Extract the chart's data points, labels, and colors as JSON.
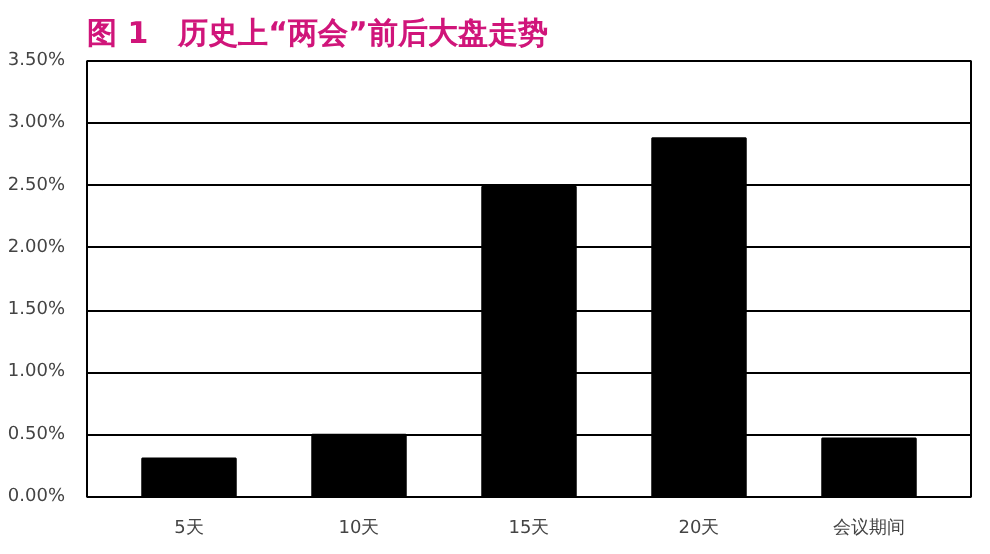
{
  "chart_data": {
    "type": "bar",
    "title": "图 1　历史上“两会”前后大盘走势",
    "categories": [
      "5天",
      "10天",
      "15天",
      "20天",
      "会议期间"
    ],
    "values": [
      0.31,
      0.5,
      2.49,
      2.88,
      0.47
    ],
    "color": "#000000",
    "ylim": [
      0,
      3.5
    ],
    "yticks": [
      {
        "value": 0,
        "label": "0.00%"
      },
      {
        "value": 0.5,
        "label": "0.50%"
      },
      {
        "value": 1,
        "label": "1.00%"
      },
      {
        "value": 1.5,
        "label": "1.50%"
      },
      {
        "value": 2,
        "label": "2.00%"
      },
      {
        "value": 2.5,
        "label": "2.50%"
      },
      {
        "value": 3,
        "label": "3.00%"
      },
      {
        "value": 3.5,
        "label": "3.50%"
      }
    ],
    "grid": "y"
  }
}
